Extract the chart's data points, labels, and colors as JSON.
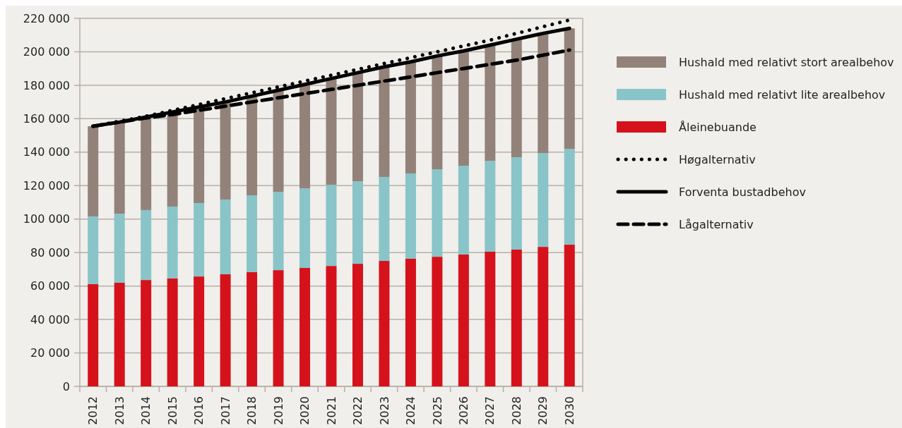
{
  "chart_data": {
    "type": "bar",
    "stacked": true,
    "categories": [
      "2012",
      "2013",
      "2014",
      "2015",
      "2016",
      "2017",
      "2018",
      "2019",
      "2020",
      "2021",
      "2022",
      "2023",
      "2024",
      "2025",
      "2026",
      "2027",
      "2028",
      "2029",
      "2030"
    ],
    "series": [
      {
        "name": "Åleinebuande",
        "color": "#d5121b",
        "values": [
          61100,
          62000,
          63600,
          64500,
          65700,
          67000,
          68300,
          69500,
          70800,
          72000,
          73300,
          75000,
          76300,
          77500,
          78800,
          80500,
          81800,
          83400,
          84700
        ]
      },
      {
        "name": "Hushald med relativt lite arealbehov",
        "color": "#89c4c8",
        "values": [
          40500,
          41200,
          41800,
          43000,
          43900,
          44700,
          45900,
          46800,
          47600,
          48500,
          49300,
          50200,
          51000,
          52300,
          53100,
          54300,
          55200,
          56100,
          57300
        ]
      },
      {
        "name": "Hushald med relativt stort arealbehov",
        "color": "#938279",
        "values": [
          53900,
          54800,
          55600,
          56500,
          57400,
          58300,
          59300,
          60700,
          62100,
          63500,
          64900,
          65800,
          66700,
          67700,
          68600,
          69200,
          70500,
          71500,
          72000
        ]
      },
      {
        "name": "Høgalternativ",
        "type": "line",
        "line_style": "dotted",
        "color": "#000000",
        "values": [
          155500,
          158500,
          161500,
          165000,
          168500,
          172000,
          175500,
          179000,
          182500,
          186000,
          189500,
          193000,
          196500,
          200000,
          203500,
          207000,
          211000,
          215000,
          219000
        ]
      },
      {
        "name": "Forventa bustadbehov",
        "type": "line",
        "line_style": "solid",
        "color": "#000000",
        "values": [
          155500,
          158000,
          161000,
          164000,
          167000,
          170000,
          173500,
          177000,
          180500,
          184000,
          187500,
          191000,
          194000,
          197500,
          200500,
          204000,
          207500,
          211000,
          214000
        ]
      },
      {
        "name": "Lågalternativ",
        "type": "line",
        "line_style": "dashed",
        "color": "#000000",
        "values": [
          155500,
          158000,
          160500,
          162500,
          165000,
          167500,
          170000,
          172500,
          175000,
          177500,
          180000,
          182500,
          185000,
          187500,
          190000,
          192500,
          195000,
          198000,
          201000
        ]
      }
    ],
    "ylim": [
      0,
      220000
    ],
    "yticks": [
      0,
      {
        "value": 20000,
        "label": "20 000"
      },
      {
        "value": 40000,
        "label": "40 000"
      },
      {
        "value": 60000,
        "label": "60 000"
      },
      {
        "value": 80000,
        "label": "80 000"
      },
      {
        "value": 100000,
        "label": "100 000"
      },
      {
        "value": 120000,
        "label": "120 000"
      },
      {
        "value": 140000,
        "label": "140 000"
      },
      {
        "value": 160000,
        "label": "160 000"
      },
      {
        "value": 180000,
        "label": "180 000"
      },
      {
        "value": 200000,
        "label": "200 000"
      },
      {
        "value": 220000,
        "label": "220 000"
      }
    ],
    "grid": "y",
    "legend": "right"
  }
}
